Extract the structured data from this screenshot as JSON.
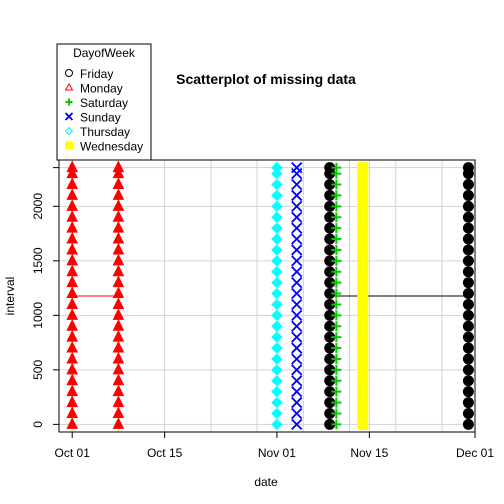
{
  "chart_data": {
    "type": "scatter",
    "title": "Scatterplot of missing data",
    "xlabel": "date",
    "ylabel": "interval",
    "x_axis": {
      "type": "date",
      "range": [
        "2012-09-29",
        "2012-12-01"
      ],
      "ticks": [
        {
          "date": "2012-10-01",
          "label": "Oct 01"
        },
        {
          "date": "2012-10-15",
          "label": "Oct 15"
        },
        {
          "date": "2012-11-01",
          "label": "Nov 01"
        },
        {
          "date": "2012-11-15",
          "label": "Nov 15"
        },
        {
          "date": "2012-12-01",
          "label": "Dec 01"
        }
      ],
      "minor_grid_dates": [
        "2012-10-08",
        "2012-10-22",
        "2012-10-29",
        "2012-11-05",
        "2012-11-12",
        "2012-11-19",
        "2012-11-26"
      ]
    },
    "y_axis": {
      "range": [
        -70,
        2425
      ],
      "ticks": [
        0,
        500,
        1000,
        1500,
        2000,
        2355
      ],
      "tick_labels": [
        "0",
        "500",
        "1000",
        "1500",
        "2000",
        ""
      ]
    },
    "grid": true,
    "interval_values": [
      0,
      100,
      200,
      300,
      400,
      500,
      600,
      700,
      800,
      900,
      1000,
      1100,
      1200,
      1300,
      1400,
      1500,
      1600,
      1700,
      1800,
      1900,
      2000,
      2100,
      2200,
      2300,
      2355
    ],
    "series": [
      {
        "name": "Friday",
        "symbol": "circle",
        "color": "#000000",
        "dates": [
          "2012-11-09",
          "2012-11-30"
        ]
      },
      {
        "name": "Monday",
        "symbol": "triangle",
        "color": "#FF0000",
        "dates": [
          "2012-10-01",
          "2012-10-08"
        ]
      },
      {
        "name": "Saturday",
        "symbol": "plus",
        "color": "#00CD00",
        "dates": [
          "2012-11-10"
        ]
      },
      {
        "name": "Sunday",
        "symbol": "cross",
        "color": "#0000FF",
        "dates": [
          "2012-11-04"
        ]
      },
      {
        "name": "Thursday",
        "symbol": "diamond",
        "color": "#00FFFF",
        "dates": [
          "2012-11-01"
        ]
      },
      {
        "name": "Wednesday",
        "symbol": "square",
        "color": "#FFFF00",
        "dates": [
          "2012-11-14"
        ]
      }
    ],
    "reference_lines": [
      {
        "color": "#FF0000",
        "x_from": "2012-10-01",
        "x_to": "2012-10-08",
        "y": 1177.5
      },
      {
        "color": "#000000",
        "x_from": "2012-11-09",
        "x_to": "2012-11-30",
        "y": 1177.5
      }
    ],
    "legend": {
      "title": "DayofWeek",
      "placement": "top-left",
      "entries": [
        "Friday",
        "Monday",
        "Saturday",
        "Sunday",
        "Thursday",
        "Wednesday"
      ]
    }
  }
}
